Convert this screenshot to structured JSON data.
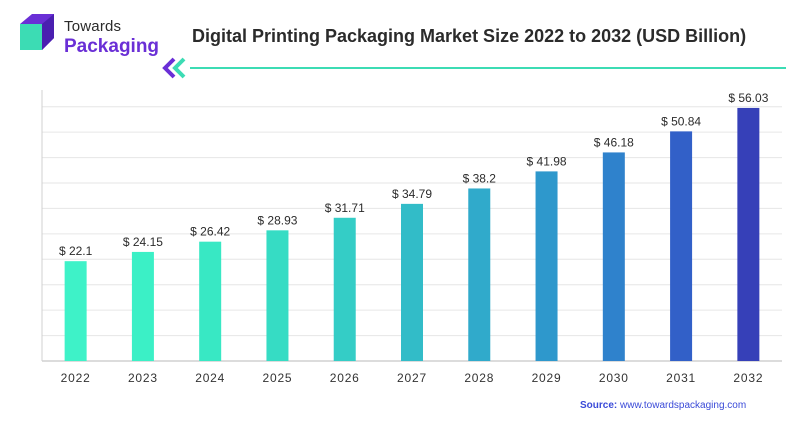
{
  "logo": {
    "line1": "Towards",
    "line2": "Packaging"
  },
  "source": {
    "label": "Source:",
    "url": "www.towardspackaging.com"
  },
  "colors": {
    "accent": "#3cdcb4",
    "brand": "#6a2fd6",
    "source_text": "#3a4ad8"
  },
  "chart_data": {
    "type": "bar",
    "title": "Digital Printing Packaging Market Size 2022 to 2032 (USD Billion)",
    "categories": [
      "2022",
      "2023",
      "2024",
      "2025",
      "2026",
      "2027",
      "2028",
      "2029",
      "2030",
      "2031",
      "2032"
    ],
    "values": [
      22.1,
      24.15,
      26.42,
      28.93,
      31.71,
      34.79,
      38.2,
      41.98,
      46.18,
      50.84,
      56.03
    ],
    "value_labels": [
      "$ 22.1",
      "$ 24.15",
      "$ 26.42",
      "$ 28.93",
      "$ 31.71",
      "$ 34.79",
      "$ 38.2",
      "$ 41.98",
      "$ 46.18",
      "$ 50.84",
      "$ 56.03"
    ],
    "bar_colors": [
      "#3ef2c8",
      "#3bf0c6",
      "#38e8c4",
      "#36dcc4",
      "#34cdc6",
      "#32bcc8",
      "#30aacb",
      "#2e98cc",
      "#2f82cc",
      "#3260c8",
      "#3640b8"
    ],
    "xlabel": "",
    "ylabel": "",
    "ylim": [
      0,
      60
    ],
    "grid": true,
    "legend": "none"
  }
}
